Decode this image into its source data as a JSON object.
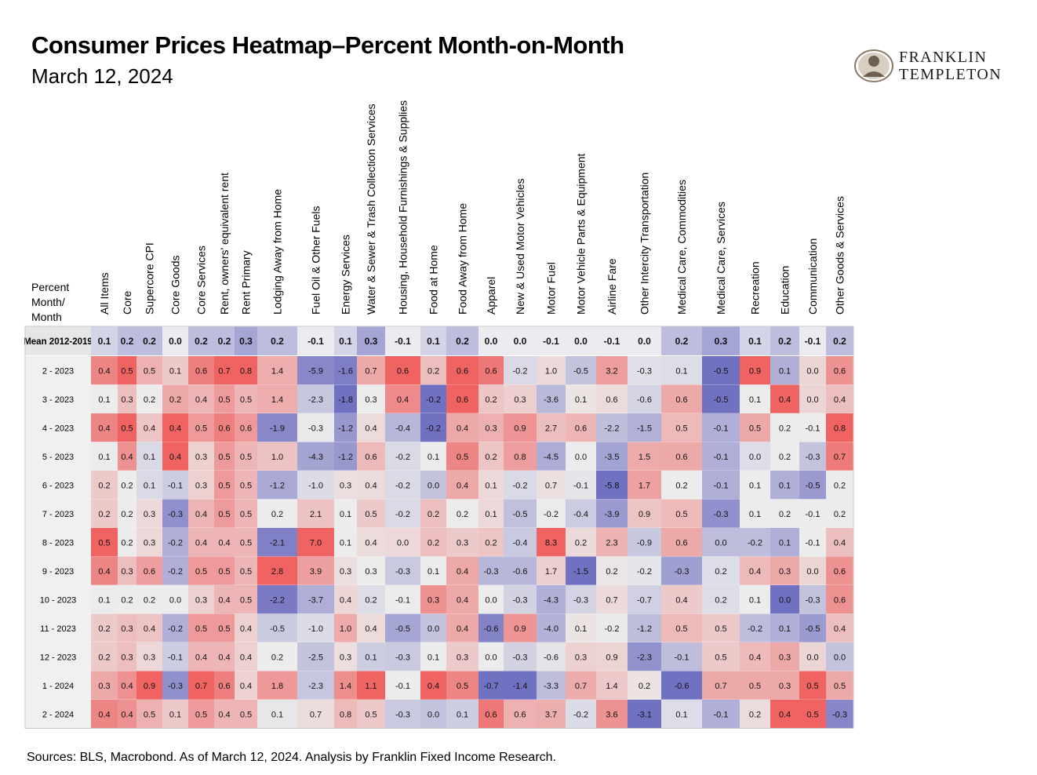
{
  "title": "Consumer Prices Heatmap–Percent Month-on-Month",
  "subtitle": "March 12, 2024",
  "unit_label": [
    "Percent",
    "Month/",
    "Month"
  ],
  "logo": {
    "line1": "FRANKLIN",
    "line2": "TEMPLETON"
  },
  "source": "Sources: BLS, Macrobond. As of March 12, 2024. Analysis by Franklin Fixed Income Research.",
  "colors": {
    "positive": "#ef5c5c",
    "negative": "#6b6bbf",
    "neutral": "#ececec",
    "mean_bg": "#f4f4f4"
  },
  "chart_data": {
    "type": "heatmap",
    "title": "Consumer Prices Heatmap–Percent Month-on-Month",
    "columns": [
      "All Items",
      "Core",
      "Supercore CPI",
      "Core Goods",
      "Core Services",
      "Rent, owners' equivalent rent",
      "Rent Primary",
      "Lodging Away from Home",
      "Fuel Oil & Other Fuels",
      "Energy Services",
      "Water & Sewer & Trash Collection Services",
      "Housing, Household Furnishings & Supplies",
      "Food at Home",
      "Food Away from Home",
      "Apparel",
      "New & Used Motor Vehicles",
      "Motor Fuel",
      "Motor Vehicle Parts & Equipment",
      "Airline Fare",
      "Other Intercity Transportation",
      "Medical Care, Commodities",
      "Medical Care, Services",
      "Recreation",
      "Education",
      "Communication",
      "Other Goods & Services"
    ],
    "rows": [
      "Mean 2012-2019",
      "2 - 2023",
      "3 - 2023",
      "4 - 2023",
      "5 - 2023",
      "6 - 2023",
      "7 - 2023",
      "8 - 2023",
      "9 - 2023",
      "10 - 2023",
      "11 - 2023",
      "12 - 2023",
      "1 - 2024",
      "2 - 2024"
    ],
    "values": [
      [
        "0.1",
        "0.2",
        "0.2",
        "0.0",
        "0.2",
        "0.2",
        "0.3",
        "0.2",
        "-0.1",
        "0.1",
        "0.3",
        "-0.1",
        "0.1",
        "0.2",
        "0.0",
        "0.0",
        "-0.1",
        "0.0",
        "-0.1",
        "0.0",
        "0.2",
        "0.3",
        "0.1",
        "0.2",
        "-0.1",
        "0.2"
      ],
      [
        "0.4",
        "0.5",
        "0.5",
        "0.1",
        "0.6",
        "0.7",
        "0.8",
        "1.4",
        "-5.9",
        "-1.6",
        "0.7",
        "0.6",
        "0.2",
        "0.6",
        "0.6",
        "-0.2",
        "1.0",
        "-0.5",
        "3.2",
        "-0.3",
        "0.1",
        "-0.5",
        "0.9",
        "0.1",
        "0.0",
        "0.6"
      ],
      [
        "0.1",
        "0.3",
        "0.2",
        "0.2",
        "0.4",
        "0.5",
        "0.5",
        "1.4",
        "-2.3",
        "-1.8",
        "0.3",
        "0.4",
        "-0.2",
        "0.6",
        "0.2",
        "0.3",
        "-3.6",
        "0.1",
        "0.6",
        "-0.6",
        "0.6",
        "-0.5",
        "0.1",
        "0.4",
        "0.0",
        "0.4"
      ],
      [
        "0.4",
        "0.5",
        "0.4",
        "0.4",
        "0.5",
        "0.6",
        "0.6",
        "-1.9",
        "-0.3",
        "-1.2",
        "0.4",
        "-0.4",
        "-0.2",
        "0.4",
        "0.3",
        "0.9",
        "2.7",
        "0.6",
        "-2.2",
        "-1.5",
        "0.5",
        "-0.1",
        "0.5",
        "0.2",
        "-0.1",
        "0.8"
      ],
      [
        "0.1",
        "0.4",
        "0.1",
        "0.4",
        "0.3",
        "0.5",
        "0.5",
        "1.0",
        "-4.3",
        "-1.2",
        "0.6",
        "-0.2",
        "0.1",
        "0.5",
        "0.2",
        "0.8",
        "-4.5",
        "0.0",
        "-3.5",
        "1.5",
        "0.6",
        "-0.1",
        "0.0",
        "0.2",
        "-0.3",
        "0.7"
      ],
      [
        "0.2",
        "0.2",
        "0.1",
        "-0.1",
        "0.3",
        "0.5",
        "0.5",
        "-1.2",
        "-1.0",
        "0.3",
        "0.4",
        "-0.2",
        "0.0",
        "0.4",
        "0.1",
        "-0.2",
        "0.7",
        "-0.1",
        "-5.8",
        "1.7",
        "0.2",
        "-0.1",
        "0.1",
        "0.1",
        "-0.5",
        "0.2"
      ],
      [
        "0.2",
        "0.2",
        "0.3",
        "-0.3",
        "0.4",
        "0.5",
        "0.5",
        "0.2",
        "2.1",
        "0.1",
        "0.5",
        "-0.2",
        "0.2",
        "0.2",
        "0.1",
        "-0.5",
        "-0.2",
        "-0.4",
        "-3.9",
        "0.9",
        "0.5",
        "-0.3",
        "0.1",
        "0.2",
        "-0.1",
        "0.2"
      ],
      [
        "0.5",
        "0.2",
        "0.3",
        "-0.2",
        "0.4",
        "0.4",
        "0.5",
        "-2.1",
        "7.0",
        "0.1",
        "0.4",
        "0.0",
        "0.2",
        "0.3",
        "0.2",
        "-0.4",
        "8.3",
        "0.2",
        "2.3",
        "-0.9",
        "0.6",
        "0.0",
        "-0.2",
        "0.1",
        "-0.1",
        "0.4"
      ],
      [
        "0.4",
        "0.3",
        "0.6",
        "-0.2",
        "0.5",
        "0.5",
        "0.5",
        "2.8",
        "3.9",
        "0.3",
        "0.3",
        "-0.3",
        "0.1",
        "0.4",
        "-0.3",
        "-0.6",
        "1.7",
        "-1.5",
        "0.2",
        "-0.2",
        "-0.3",
        "0.2",
        "0.4",
        "0.3",
        "0.0",
        "0.6"
      ],
      [
        "0.1",
        "0.2",
        "0.2",
        "0.0",
        "0.3",
        "0.4",
        "0.5",
        "-2.2",
        "-3.7",
        "0.4",
        "0.2",
        "-0.1",
        "0.3",
        "0.4",
        "0.0",
        "-0.3",
        "-4.3",
        "-0.3",
        "0.7",
        "-0.7",
        "0.4",
        "0.2",
        "0.1",
        "0.0",
        "-0.3",
        "0.6"
      ],
      [
        "0.2",
        "0.3",
        "0.4",
        "-0.2",
        "0.5",
        "0.5",
        "0.4",
        "-0.5",
        "-1.0",
        "1.0",
        "0.4",
        "-0.5",
        "0.0",
        "0.4",
        "-0.6",
        "0.9",
        "-4.0",
        "0.1",
        "-0.2",
        "-1.2",
        "0.5",
        "0.5",
        "-0.2",
        "0.1",
        "-0.5",
        "0.4"
      ],
      [
        "0.2",
        "0.3",
        "0.3",
        "-0.1",
        "0.4",
        "0.4",
        "0.4",
        "0.2",
        "-2.5",
        "0.3",
        "0.1",
        "-0.3",
        "0.1",
        "0.3",
        "0.0",
        "-0.3",
        "-0.6",
        "0.3",
        "0.9",
        "-2.3",
        "-0.1",
        "0.5",
        "0.4",
        "0.3",
        "0.0",
        "0.0"
      ],
      [
        "0.3",
        "0.4",
        "0.9",
        "-0.3",
        "0.7",
        "0.6",
        "0.4",
        "1.8",
        "-2.3",
        "1.4",
        "1.1",
        "-0.1",
        "0.4",
        "0.5",
        "-0.7",
        "-1.4",
        "-3.3",
        "0.7",
        "1.4",
        "0.2",
        "-0.6",
        "0.7",
        "0.5",
        "0.3",
        "0.5",
        "0.5"
      ],
      [
        "0.4",
        "0.4",
        "0.5",
        "0.1",
        "0.5",
        "0.4",
        "0.5",
        "0.1",
        "0.7",
        "0.8",
        "0.5",
        "-0.3",
        "0.0",
        "0.1",
        "0.6",
        "0.6",
        "3.7",
        "-0.2",
        "3.6",
        "-3.1",
        "0.1",
        "-0.1",
        "0.2",
        "0.4",
        "0.5",
        "-0.3"
      ]
    ]
  }
}
